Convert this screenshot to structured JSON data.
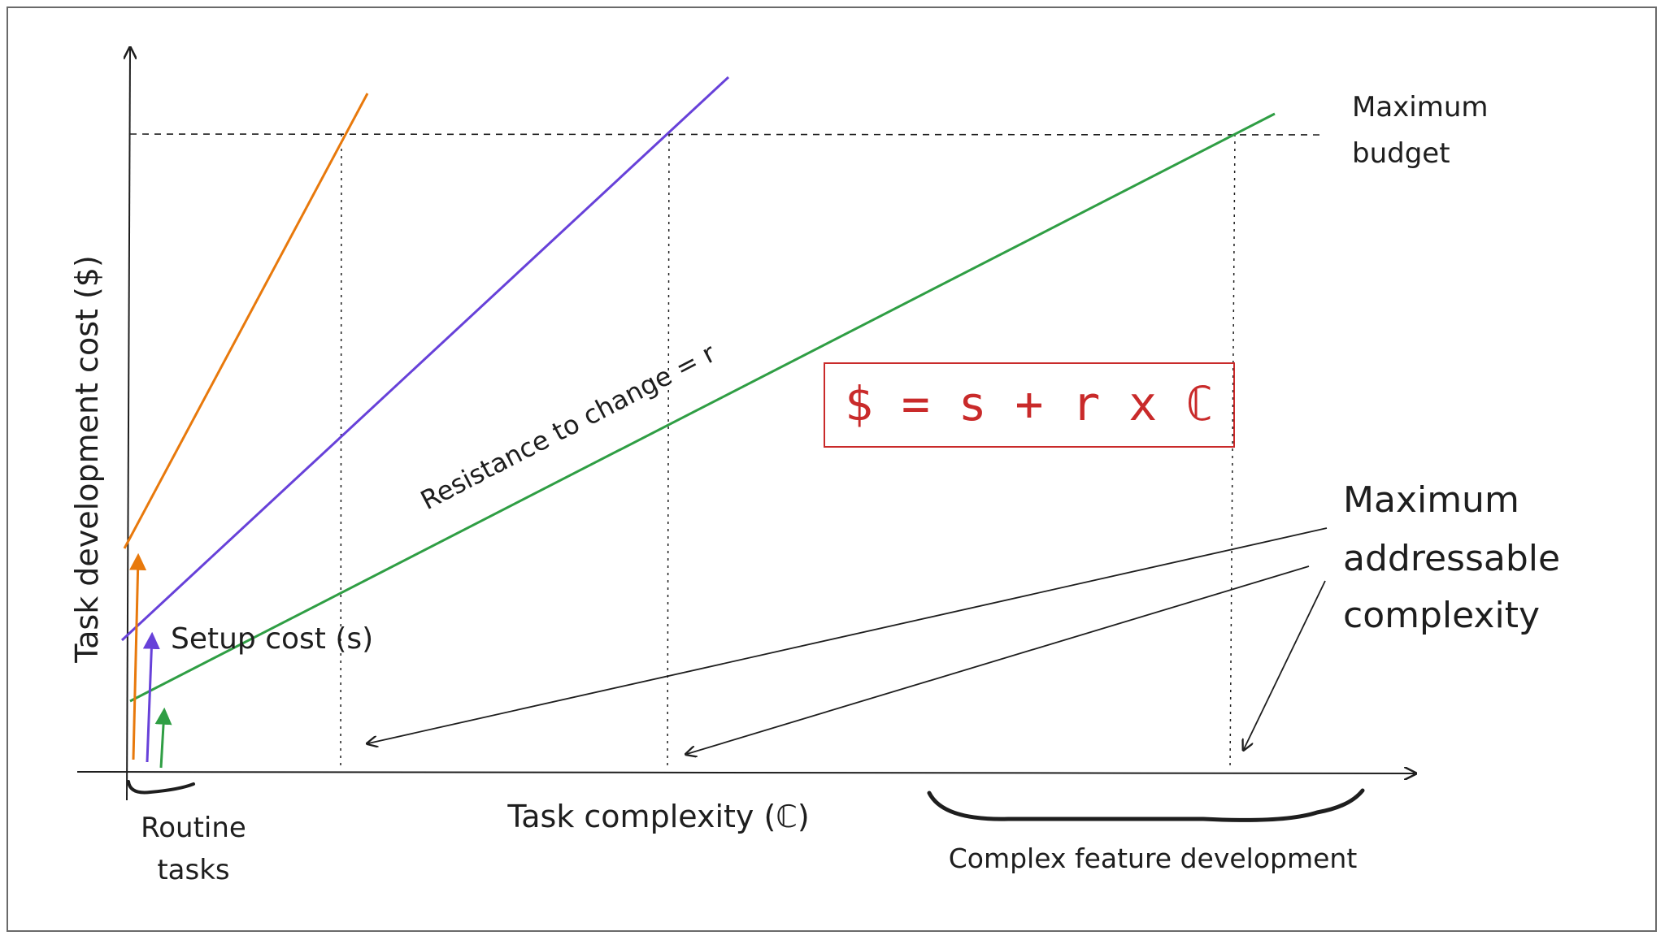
{
  "diagram": {
    "y_axis_label": "Task development cost ($)",
    "x_axis_label": "Task complexity (ℂ)",
    "budget_label_line1": "Maximum",
    "budget_label_line2": "budget",
    "slope_label": "Resistance to change = r",
    "setup_label": "Setup cost (s)",
    "formula": "$ = s + r x ℂ",
    "mac_label_line1": "Maximum",
    "mac_label_line2": "addressable",
    "mac_label_line3": "complexity",
    "routine_line1": "Routine",
    "routine_line2": "tasks",
    "complex_label": "Complex feature development"
  },
  "colors": {
    "orange": "#e8790c",
    "purple": "#6741d9",
    "green": "#2f9e44",
    "formula_red": "#c92a2a",
    "ink": "#1e1e1e"
  }
}
